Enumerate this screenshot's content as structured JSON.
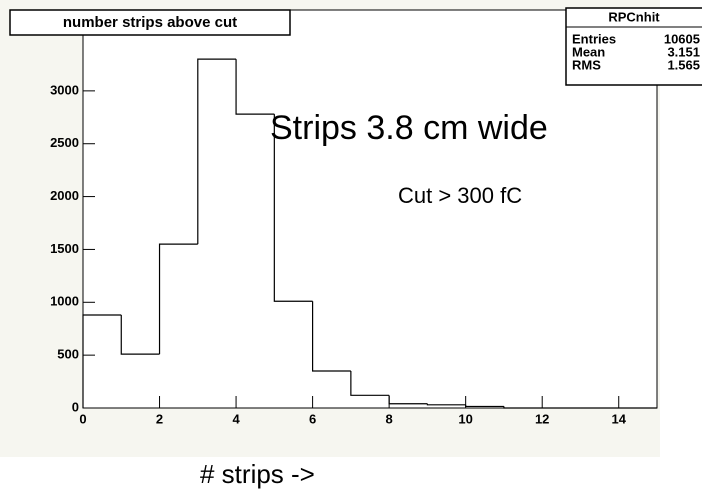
{
  "chart_data": {
    "type": "histogram",
    "title": "number strips above cut",
    "bins": [
      0,
      1,
      2,
      3,
      4,
      5,
      6,
      7,
      8,
      9,
      10,
      11,
      12,
      13,
      14,
      15
    ],
    "values": [
      880,
      510,
      1550,
      3300,
      2780,
      1010,
      350,
      120,
      40,
      30,
      15,
      0,
      0,
      0,
      0
    ],
    "color": "#000000",
    "xlim": [
      0,
      15
    ],
    "ylim": [
      0,
      3765
    ],
    "xticks": [
      0,
      2,
      4,
      6,
      8,
      10,
      12,
      14
    ],
    "yticks": [
      0,
      500,
      1000,
      1500,
      2000,
      2500,
      3000
    ],
    "xlabel": "# strips ->",
    "annotations": [
      "Strips 3.8 cm wide",
      "Cut > 300 fC"
    ],
    "stats": {
      "title": "RPCnhit",
      "rows": [
        {
          "label": "Entries",
          "value": 10605
        },
        {
          "label": "Mean",
          "value": 3.151
        },
        {
          "label": "RMS",
          "value": 1.565
        }
      ]
    }
  }
}
